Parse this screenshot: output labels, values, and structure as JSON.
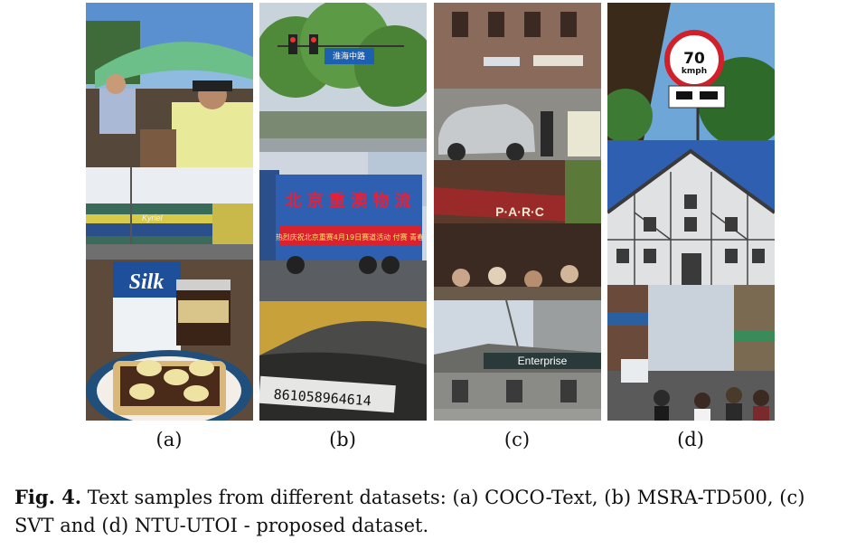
{
  "figure": {
    "panels": [
      {
        "label": "(a)",
        "tiles": [
          "umbrella-photo",
          "train-photo",
          "silk-breakfast-photo"
        ]
      },
      {
        "label": "(b)",
        "tiles": [
          "street-sign-photo",
          "truck-banner-photo",
          "serial-number-photo"
        ]
      },
      {
        "label": "(c)",
        "tiles": [
          "storefront-car-photo",
          "parc-cafe-photo",
          "enterprise-building-photo"
        ]
      },
      {
        "label": "(d)",
        "tiles": [
          "speed-sign-photo",
          "timber-house-photo",
          "crowded-street-photo"
        ]
      }
    ],
    "embedded_text": {
      "silk_logo": "Silk",
      "blue_sign": "淮海中路",
      "truck_chars": "北 京 重 澳 物 流",
      "truck_banner": "热烈庆祝北京重赛4月19日赛道活动 付赛 青春",
      "serial": "861058964614",
      "parc": "P·A·R·C",
      "enterprise": "Enterprise",
      "speed_value": "70",
      "speed_unit": "kmph",
      "train_text": "Kyriel"
    },
    "caption": {
      "label": "Fig. 4.",
      "text": " Text samples from different datasets: (a) COCO-Text, (b) MSRA-TD500, (c) SVT and (d) NTU-UTOI - proposed dataset."
    }
  }
}
